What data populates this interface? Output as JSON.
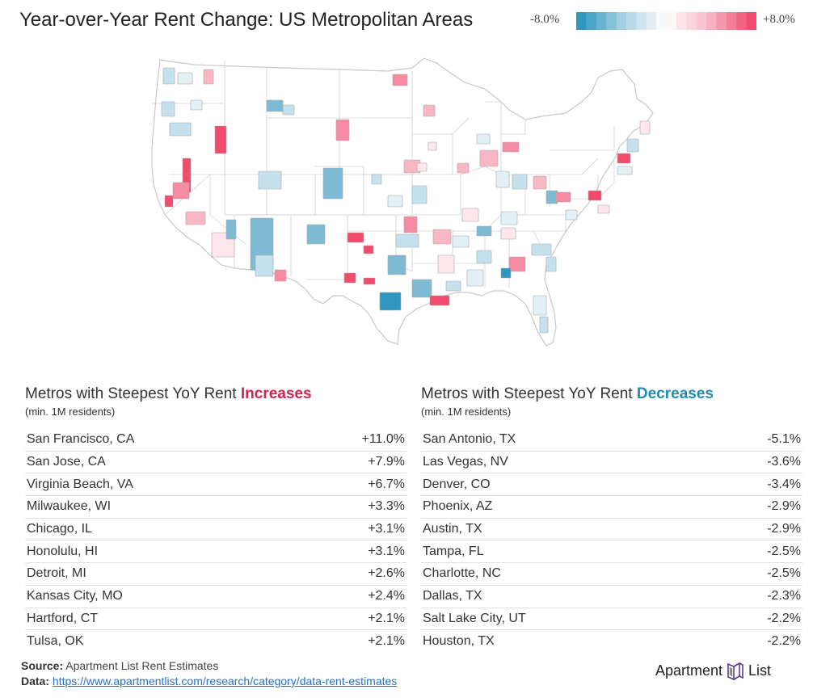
{
  "title": "Year-over-Year Rent Change: US Metropolitan Areas",
  "legend": {
    "min_label": "-8.0%",
    "max_label": "+8.0%",
    "colors": [
      "#2f97c0",
      "#a9d2e4",
      "#ffffff",
      "#f9b7c6",
      "#f04c6b"
    ]
  },
  "colors": {
    "increase": "#d6204d",
    "decrease": "#1d8fae",
    "link": "#2a6fbf",
    "logo_icon": "#5b3e8c"
  },
  "increases": {
    "heading_prefix": "Metros with Steepest YoY Rent ",
    "heading_highlight": "Increases",
    "subheading": "(min. 1M residents)",
    "rows": [
      {
        "metro": "San Francisco, CA",
        "value": "+11.0%"
      },
      {
        "metro": "San Jose, CA",
        "value": "+7.9%"
      },
      {
        "metro": "Virginia Beach, VA",
        "value": "+6.7%"
      },
      {
        "metro": "Milwaukee, WI",
        "value": "+3.3%"
      },
      {
        "metro": "Chicago, IL",
        "value": "+3.1%"
      },
      {
        "metro": "Honolulu, HI",
        "value": "+3.1%"
      },
      {
        "metro": "Detroit, MI",
        "value": "+2.6%"
      },
      {
        "metro": "Kansas City, MO",
        "value": "+2.4%"
      },
      {
        "metro": "Hartford, CT",
        "value": "+2.1%"
      },
      {
        "metro": "Tulsa, OK",
        "value": "+2.1%"
      }
    ]
  },
  "decreases": {
    "heading_prefix": "Metros with Steepest YoY Rent ",
    "heading_highlight": "Decreases",
    "subheading": "(min. 1M residents)",
    "rows": [
      {
        "metro": "San Antonio, TX",
        "value": "-5.1%"
      },
      {
        "metro": "Las Vegas, NV",
        "value": "-3.6%"
      },
      {
        "metro": "Denver, CO",
        "value": "-3.4%"
      },
      {
        "metro": "Phoenix, AZ",
        "value": "-2.9%"
      },
      {
        "metro": "Austin, TX",
        "value": "-2.9%"
      },
      {
        "metro": "Tampa, FL",
        "value": "-2.5%"
      },
      {
        "metro": "Charlotte, NC",
        "value": "-2.5%"
      },
      {
        "metro": "Dallas, TX",
        "value": "-2.3%"
      },
      {
        "metro": "Salt Lake City, UT",
        "value": "-2.2%"
      },
      {
        "metro": "Houston, TX",
        "value": "-2.2%"
      }
    ]
  },
  "footer": {
    "source_label": "Source:",
    "source_text": "Apartment List Rent Estimates",
    "data_label": "Data:",
    "data_link": "https://www.apartmentlist.com/research/category/data-rent-estimates"
  },
  "logo": {
    "left_text": "Apartment",
    "right_text": "List",
    "icon": "apartment-list-logo-icon"
  }
}
